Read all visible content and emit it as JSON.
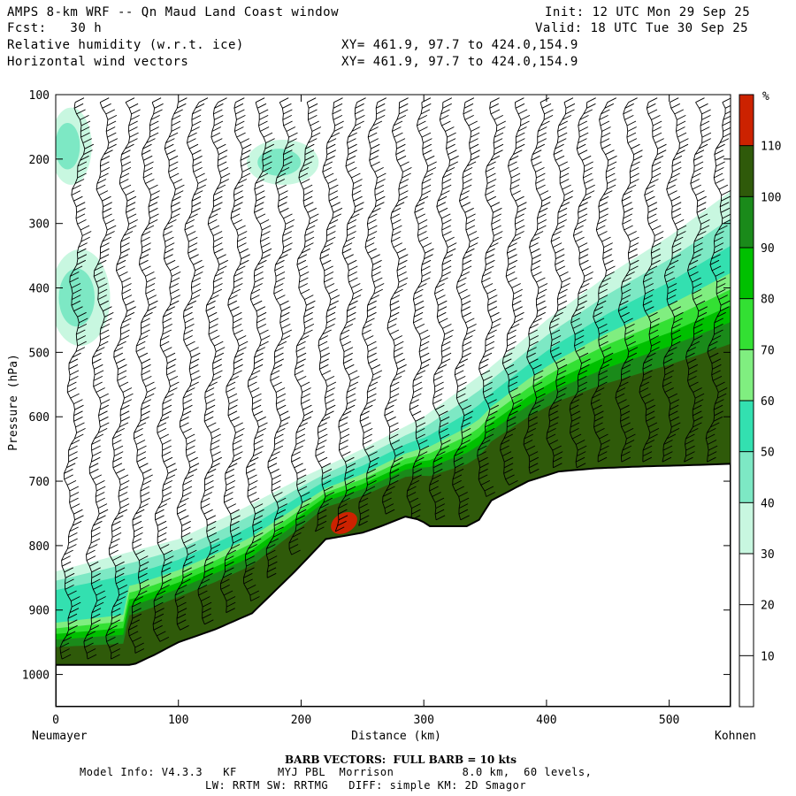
{
  "header": {
    "title": "AMPS 8-km WRF -- Qn Maud Land Coast window",
    "init": "Init: 12 UTC Mon 29 Sep 25",
    "fcst": "Fcst:   30 h",
    "valid": "Valid: 18 UTC Tue 30 Sep 25",
    "field1": "Relative humidity (w.r.t. ice)",
    "field2": "Horizontal wind vectors",
    "xy1": "XY= 461.9, 97.7 to 424.0,154.9",
    "xy2": "XY= 461.9, 97.7 to 424.0,154.9"
  },
  "footer": {
    "barb_note": "BARB VECTORS:  FULL BARB = 10 kts",
    "model_info": "Model Info: V4.3.3   KF      MYJ PBL  Morrison          8.0 km,  60 levels,",
    "physics": "LW: RRTM SW: RRTMG   DIFF: simple KM: 2D Smagor"
  },
  "chart_data": {
    "type": "heatmap",
    "title": "Relative humidity (w.r.t. ice) and horizontal wind vectors, Neumayer to Kohnen cross-section",
    "xlabel": "Distance (km)",
    "ylabel": "Pressure (hPa)",
    "xlim": [
      0,
      550
    ],
    "ylim": [
      1050,
      100
    ],
    "x_ticks": [
      0,
      100,
      200,
      300,
      400,
      500
    ],
    "y_ticks": [
      100,
      200,
      300,
      400,
      500,
      600,
      700,
      800,
      900,
      1000
    ],
    "x_start_label": "Neumayer",
    "x_end_label": "Kohnen",
    "colorbar": {
      "unit": "%",
      "levels": [
        10,
        20,
        30,
        40,
        50,
        60,
        70,
        80,
        90,
        100,
        110
      ],
      "colors": [
        "#ffffff",
        "#ffffff",
        "#ffffff",
        "#c8f7e0",
        "#7de8c4",
        "#33e0b0",
        "#80ee80",
        "#33e033",
        "#00c000",
        "#1a8a1a",
        "#2f5a0a",
        "#cc2200"
      ]
    },
    "terrain": {
      "distance_km": [
        0,
        63,
        80,
        100,
        130,
        160,
        195,
        220,
        250,
        265,
        285,
        297,
        305,
        320,
        335,
        345,
        355,
        365,
        385,
        410,
        440,
        480,
        520,
        550
      ],
      "surface_hPa": [
        985,
        985,
        970,
        950,
        930,
        905,
        840,
        790,
        780,
        770,
        755,
        760,
        770,
        770,
        770,
        760,
        730,
        720,
        700,
        685,
        680,
        677,
        675,
        673
      ]
    },
    "moist_layer": {
      "distance_km": [
        0,
        50,
        100,
        150,
        200,
        250,
        300,
        350,
        400,
        450,
        500,
        550
      ],
      "top_30pct_hPa": [
        840,
        815,
        790,
        745,
        695,
        650,
        600,
        530,
        450,
        380,
        320,
        250
      ]
    },
    "rh_max_region": {
      "distance_km": [
        220,
        250
      ],
      "pressure_hPa": [
        740,
        790
      ],
      "value_pct": 110
    },
    "upper_moist_patches": [
      {
        "distance_km": [
          0,
          25
        ],
        "pressure_hPa": [
          120,
          240
        ]
      },
      {
        "distance_km": [
          0,
          40
        ],
        "pressure_hPa": [
          340,
          490
        ]
      },
      {
        "distance_km": [
          160,
          210
        ],
        "pressure_hPa": [
          170,
          240
        ]
      }
    ],
    "barb_columns_km": [
      20,
      40,
      58,
      76,
      95,
      113,
      132,
      150,
      168,
      186,
      205,
      224,
      242,
      260,
      280,
      300,
      318,
      336,
      356,
      375,
      394,
      412,
      430,
      448,
      468,
      487,
      505,
      524,
      542
    ]
  }
}
